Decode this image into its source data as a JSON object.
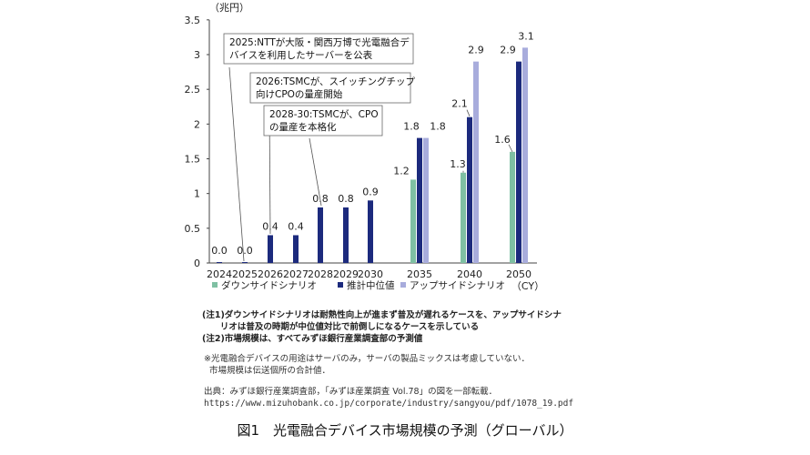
{
  "chart_data": {
    "type": "bar",
    "unit_label": "（兆円）",
    "categories": [
      "2024",
      "2025",
      "2026",
      "2027",
      "2028",
      "2029",
      "2030",
      "2035",
      "2040",
      "2050"
    ],
    "x_unit": "（CY）",
    "ylim": [
      0,
      3.5
    ],
    "yticks": [
      "0",
      "0.5",
      "1",
      "1.5",
      "2",
      "2.5",
      "3",
      "3.5"
    ],
    "ytick_values": [
      0,
      0.5,
      1,
      1.5,
      2,
      2.5,
      3,
      3.5
    ],
    "grid": false,
    "legend_position": "bottom",
    "series": [
      {
        "name": "ダウンサイドシナリオ",
        "color": "#7fc0a3",
        "values": [
          null,
          null,
          null,
          null,
          null,
          null,
          null,
          1.2,
          1.3,
          1.6
        ]
      },
      {
        "name": "推計中位値",
        "color": "#1c2a7d",
        "values": [
          0.0,
          0.0,
          0.4,
          0.4,
          0.8,
          0.8,
          0.9,
          1.8,
          2.1,
          2.9
        ]
      },
      {
        "name": "アップサイドシナリオ",
        "color": "#a8acdc",
        "values": [
          null,
          null,
          null,
          null,
          null,
          null,
          null,
          1.8,
          2.9,
          3.1
        ]
      }
    ],
    "data_labels": {
      "median": [
        "0.0",
        "0.0",
        "0.4",
        "0.4",
        "0.8",
        "0.8",
        "0.9",
        "1.8",
        "2.1",
        "2.9"
      ],
      "downside": [
        "1.2",
        "1.3",
        "1.6"
      ],
      "upside": [
        "1.8",
        "2.9",
        "3.1"
      ]
    },
    "annotations": [
      {
        "text_lines": [
          "2025:NTTが大阪・関西万博で光電融合デ",
          "バイスを利用したサーバーを公表"
        ],
        "target_category": "2025"
      },
      {
        "text_lines": [
          "2026:TSMCが、スイッチングチップ",
          "向けCPOの量産開始"
        ],
        "target_category": "2026"
      },
      {
        "text_lines": [
          "2028-30:TSMCが、CPO",
          "の量産を本格化"
        ],
        "target_category": "2028"
      }
    ]
  },
  "notes": {
    "line1": "(注1)ダウンサイドシナリオは耐熱性向上が進まず普及が遅れるケースを、アップサイドシナ",
    "line2": "      リオは普及の時期が中位値対比で前倒しになるケースを示している",
    "line3": "(注2)市場規模は、すべてみずほ銀行産業調査部の予測値"
  },
  "remarks": {
    "line1": "※光電融合デバイスの用途はサーバのみ，サーバの製品ミックスは考慮していない．",
    "line2": "  市場規模は伝送個所の合計値．"
  },
  "source": {
    "line1": "出典：みずほ銀行産業調査部，「みずほ産業調査 Vol.78」の図を一部転載．",
    "url": "https://www.mizuhobank.co.jp/corporate/industry/sangyou/pdf/1078_19.pdf"
  },
  "caption": "図1　光電融合デバイス市場規模の予測（グローバル）"
}
